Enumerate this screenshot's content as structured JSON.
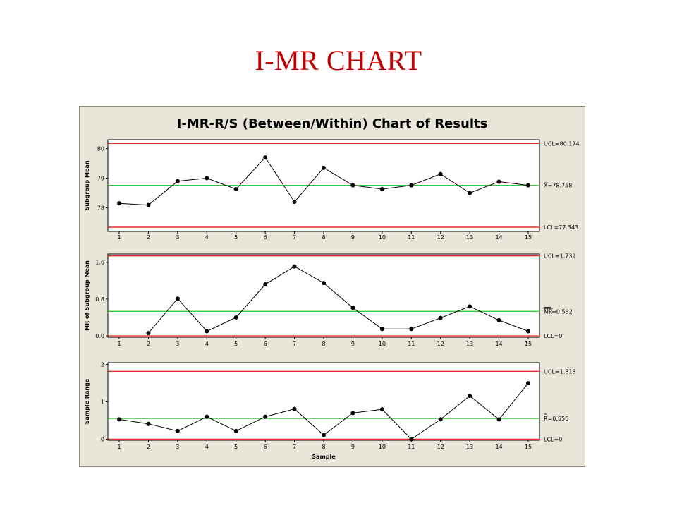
{
  "slide": {
    "title": "I-MR CHART"
  },
  "chart_data": {
    "type": "line",
    "title": "I-MR-R/S (Between/Within) Chart of Results",
    "xlabel": "Sample",
    "x": [
      1,
      2,
      3,
      4,
      5,
      6,
      7,
      8,
      9,
      10,
      11,
      12,
      13,
      14,
      15
    ],
    "colors": {
      "limit": "#e03020",
      "center": "#33cc33",
      "line": "#000000",
      "plot_bg": "#ffffff",
      "frame_bg": "#e8e6d8"
    },
    "panels": [
      {
        "name": "subgroup-mean",
        "ylabel": "Subgroup Mean",
        "ylim": [
          77.2,
          80.3
        ],
        "yticks": [
          78,
          79,
          80
        ],
        "ytick_labels": [
          "78",
          "79",
          "80"
        ],
        "values": [
          78.15,
          78.09,
          78.9,
          79.0,
          78.63,
          79.7,
          78.2,
          79.35,
          78.76,
          78.63,
          78.76,
          79.14,
          78.5,
          78.88,
          78.76
        ],
        "ucl": 80.174,
        "center": 78.758,
        "lcl": 77.343,
        "ucl_label": "UCL=80.174",
        "center_prefix": "X",
        "center_label": "=78.758",
        "lcl_label": "LCL=77.343"
      },
      {
        "name": "mr-subgroup-mean",
        "ylabel": "MR of Subgroup Mean",
        "ylim": [
          -0.03,
          1.78
        ],
        "yticks": [
          0.0,
          0.8,
          1.6
        ],
        "ytick_labels": [
          "0.0",
          "0.8",
          "1.6"
        ],
        "x_start": 2,
        "values": [
          0.06,
          0.81,
          0.1,
          0.4,
          1.12,
          1.51,
          1.15,
          0.61,
          0.15,
          0.15,
          0.39,
          0.64,
          0.34,
          0.1
        ],
        "ucl": 1.739,
        "center": 0.532,
        "lcl": 0,
        "ucl_label": "UCL=1.739",
        "center_prefix": "MR",
        "center_label": "=0.532",
        "lcl_label": "LCL=0"
      },
      {
        "name": "sample-range",
        "ylabel": "Sample Range",
        "ylim": [
          -0.03,
          2.05
        ],
        "yticks": [
          0,
          1,
          2
        ],
        "ytick_labels": [
          "0",
          "1",
          "2"
        ],
        "values": [
          0.53,
          0.41,
          0.22,
          0.6,
          0.22,
          0.6,
          0.81,
          0.11,
          0.7,
          0.8,
          0.0,
          0.53,
          1.16,
          0.53,
          1.5
        ],
        "ucl": 1.818,
        "center": 0.556,
        "lcl": 0,
        "ucl_label": "UCL=1.818",
        "center_prefix": "R",
        "center_label": "=0.556",
        "lcl_label": "LCL=0"
      }
    ]
  }
}
